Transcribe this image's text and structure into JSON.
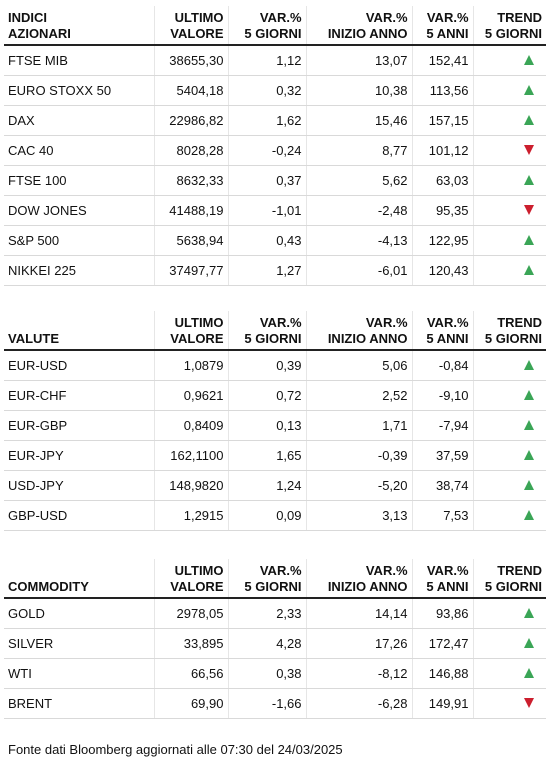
{
  "colors": {
    "up": "#3aa556",
    "down": "#cc1f2e"
  },
  "tables": [
    {
      "headers": {
        "name_1": "INDICI",
        "name_2": "AZIONARI",
        "val_1": "ULTIMO",
        "val_2": "VALORE",
        "v5_1": "VAR.%",
        "v5_2": "5 GIORNI",
        "vy_1": "VAR.%",
        "vy_2": "INIZIO ANNO",
        "a5_1": "VAR.%",
        "a5_2": "5 ANNI",
        "tr_1": "TREND",
        "tr_2": "5 GIORNI"
      },
      "rows": [
        {
          "name": "FTSE MIB",
          "value": "38655,30",
          "var5g": "1,12",
          "varytd": "13,07",
          "var5y": "152,41",
          "trend": "up-arrow-icon"
        },
        {
          "name": "EURO STOXX 50",
          "value": "5404,18",
          "var5g": "0,32",
          "varytd": "10,38",
          "var5y": "113,56",
          "trend": "up-arrow-icon"
        },
        {
          "name": "DAX",
          "value": "22986,82",
          "var5g": "1,62",
          "varytd": "15,46",
          "var5y": "157,15",
          "trend": "up-arrow-icon"
        },
        {
          "name": "CAC 40",
          "value": "8028,28",
          "var5g": "-0,24",
          "varytd": "8,77",
          "var5y": "101,12",
          "trend": "down-arrow-icon"
        },
        {
          "name": "FTSE 100",
          "value": "8632,33",
          "var5g": "0,37",
          "varytd": "5,62",
          "var5y": "63,03",
          "trend": "up-arrow-icon"
        },
        {
          "name": "DOW JONES",
          "value": "41488,19",
          "var5g": "-1,01",
          "varytd": "-2,48",
          "var5y": "95,35",
          "trend": "down-arrow-icon"
        },
        {
          "name": "S&P 500",
          "value": "5638,94",
          "var5g": "0,43",
          "varytd": "-4,13",
          "var5y": "122,95",
          "trend": "up-arrow-icon"
        },
        {
          "name": "NIKKEI 225",
          "value": "37497,77",
          "var5g": "1,27",
          "varytd": "-6,01",
          "var5y": "120,43",
          "trend": "up-arrow-icon"
        }
      ]
    },
    {
      "headers": {
        "name_1": "",
        "name_2": "VALUTE",
        "val_1": "ULTIMO",
        "val_2": "VALORE",
        "v5_1": "VAR.%",
        "v5_2": "5 GIORNI",
        "vy_1": "VAR.%",
        "vy_2": "INIZIO ANNO",
        "a5_1": "VAR.%",
        "a5_2": "5 ANNI",
        "tr_1": "TREND",
        "tr_2": "5 GIORNI"
      },
      "rows": [
        {
          "name": "EUR-USD",
          "value": "1,0879",
          "var5g": "0,39",
          "varytd": "5,06",
          "var5y": "-0,84",
          "trend": "up-arrow-icon"
        },
        {
          "name": "EUR-CHF",
          "value": "0,9621",
          "var5g": "0,72",
          "varytd": "2,52",
          "var5y": "-9,10",
          "trend": "up-arrow-icon"
        },
        {
          "name": "EUR-GBP",
          "value": "0,8409",
          "var5g": "0,13",
          "varytd": "1,71",
          "var5y": "-7,94",
          "trend": "up-arrow-icon"
        },
        {
          "name": "EUR-JPY",
          "value": "162,1100",
          "var5g": "1,65",
          "varytd": "-0,39",
          "var5y": "37,59",
          "trend": "up-arrow-icon"
        },
        {
          "name": "USD-JPY",
          "value": "148,9820",
          "var5g": "1,24",
          "varytd": "-5,20",
          "var5y": "38,74",
          "trend": "up-arrow-icon"
        },
        {
          "name": "GBP-USD",
          "value": "1,2915",
          "var5g": "0,09",
          "varytd": "3,13",
          "var5y": "7,53",
          "trend": "up-arrow-icon"
        }
      ]
    },
    {
      "headers": {
        "name_1": "",
        "name_2": "COMMODITY",
        "val_1": "ULTIMO",
        "val_2": "VALORE",
        "v5_1": "VAR.%",
        "v5_2": "5 GIORNI",
        "vy_1": "VAR.%",
        "vy_2": "INIZIO ANNO",
        "a5_1": "VAR.%",
        "a5_2": "5 ANNI",
        "tr_1": "TREND",
        "tr_2": "5 GIORNI"
      },
      "rows": [
        {
          "name": "GOLD",
          "value": "2978,05",
          "var5g": "2,33",
          "varytd": "14,14",
          "var5y": "93,86",
          "trend": "up-arrow-icon"
        },
        {
          "name": "SILVER",
          "value": "33,895",
          "var5g": "4,28",
          "varytd": "17,26",
          "var5y": "172,47",
          "trend": "up-arrow-icon"
        },
        {
          "name": "WTI",
          "value": "66,56",
          "var5g": "0,38",
          "varytd": "-8,12",
          "var5y": "146,88",
          "trend": "up-arrow-icon"
        },
        {
          "name": "BRENT",
          "value": "69,90",
          "var5g": "-1,66",
          "varytd": "-6,28",
          "var5y": "149,91",
          "trend": "down-arrow-icon"
        }
      ]
    }
  ],
  "footer": "Fonte dati Bloomberg aggiornati alle 07:30 del 24/03/2025"
}
